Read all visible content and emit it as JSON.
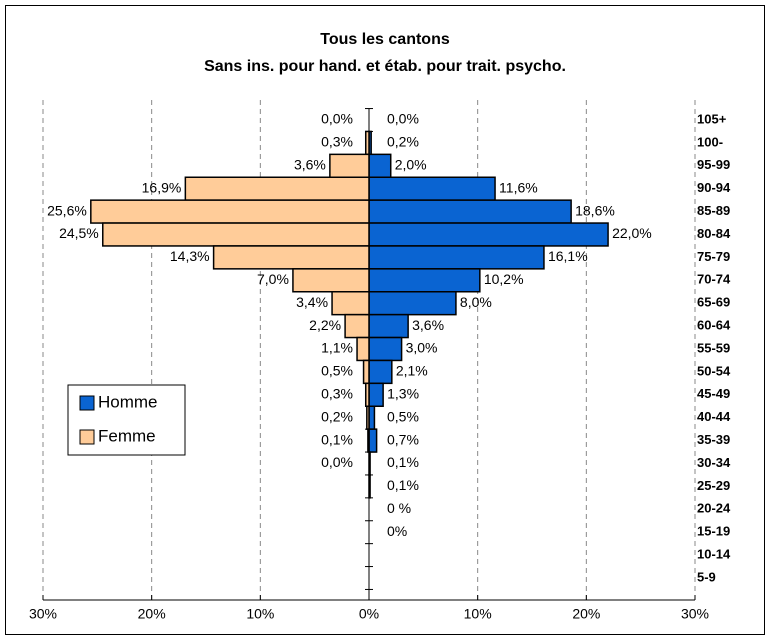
{
  "chart_data": {
    "type": "pyramid",
    "title": "Tous les cantons",
    "subtitle": "Sans ins. pour hand. et étab. pour trait. psycho.",
    "categories": [
      "105+",
      "100-",
      "95-99",
      "90-94",
      "85-89",
      "80-84",
      "75-79",
      "70-74",
      "65-69",
      "60-64",
      "55-59",
      "50-54",
      "45-49",
      "40-44",
      "35-39",
      "30-34",
      "25-29",
      "20-24",
      "15-19",
      "10-14",
      "5-9"
    ],
    "series": [
      {
        "name": "Homme",
        "color": "#0a64d2",
        "side": "right",
        "values": [
          0,
          0.2,
          2.0,
          11.6,
          18.6,
          22.0,
          16.1,
          10.2,
          8.0,
          3.6,
          3.0,
          2.1,
          1.3,
          0.5,
          0.7,
          0.1,
          0.1,
          0,
          0,
          null,
          null
        ],
        "value_labels": [
          "0,0%",
          "0,2%",
          "2,0%",
          "11,6%",
          "18,6%",
          "22,0%",
          "16,1%",
          "10,2%",
          "8,0%",
          "3,6%",
          "3,0%",
          "2,1%",
          "1,3%",
          "0,5%",
          "0,7%",
          "0,1%",
          "0,1%",
          "0 %",
          "0%",
          null,
          null
        ]
      },
      {
        "name": "Femme",
        "color": "#ffcc99",
        "side": "left",
        "values": [
          0,
          0.3,
          3.6,
          16.9,
          25.6,
          24.5,
          14.3,
          7.0,
          3.4,
          2.2,
          1.1,
          0.5,
          0.3,
          0.2,
          0.1,
          0,
          null,
          null,
          null,
          null,
          null
        ],
        "value_labels": [
          "0,0%",
          "0,3%",
          "3,6%",
          "16,9%",
          "25,6%",
          "24,5%",
          "14,3%",
          "7,0%",
          "3,4%",
          "2,2%",
          "1,1%",
          "0,5%",
          "0,3%",
          "0,2%",
          "0,1%",
          "0,0%",
          null,
          null,
          null,
          null,
          null
        ]
      }
    ],
    "xlim": [
      -30,
      30
    ],
    "xticks": [
      {
        "value": -30,
        "label": "30%"
      },
      {
        "value": -20,
        "label": "20%"
      },
      {
        "value": -10,
        "label": "10%"
      },
      {
        "value": 0,
        "label": "0%"
      },
      {
        "value": 10,
        "label": "10%"
      },
      {
        "value": 20,
        "label": "20%"
      },
      {
        "value": 30,
        "label": "30%"
      }
    ],
    "grid": true,
    "legend": "left"
  }
}
